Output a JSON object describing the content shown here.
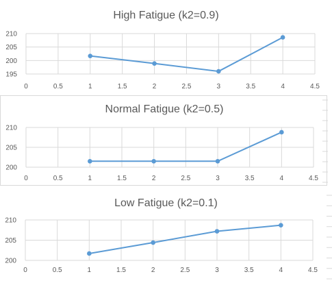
{
  "colors": {
    "series": "#5b9bd5",
    "grid": "#d9d9d9",
    "text": "#595959"
  },
  "chart_data": [
    {
      "type": "line",
      "title": "High Fatigue (k2=0.9)",
      "xlim": [
        0,
        4.5
      ],
      "ylim": [
        195,
        210
      ],
      "x_ticks": [
        "0",
        "0.5",
        "1",
        "1.5",
        "2",
        "2.5",
        "3",
        "3.5",
        "4",
        "4.5"
      ],
      "y_ticks": [
        "195",
        "200",
        "205",
        "210"
      ],
      "grid": true,
      "series": [
        {
          "x": [
            1,
            2,
            3,
            4
          ],
          "y": [
            201.7,
            198.9,
            196.0,
            208.6
          ]
        }
      ]
    },
    {
      "type": "line",
      "title": "Normal Fatigue (k2=0.5)",
      "xlim": [
        0,
        4.5
      ],
      "ylim": [
        200,
        210
      ],
      "x_ticks": [
        "0",
        "0.5",
        "1",
        "1.5",
        "2",
        "2.5",
        "3",
        "3.5",
        "4",
        "4.5"
      ],
      "y_ticks": [
        "200",
        "205",
        "210"
      ],
      "grid": true,
      "series": [
        {
          "x": [
            1,
            2,
            3,
            4
          ],
          "y": [
            201.5,
            201.5,
            201.5,
            208.8
          ]
        }
      ]
    },
    {
      "type": "line",
      "title": "Low Fatigue (k2=0.1)",
      "xlim": [
        0,
        4.5
      ],
      "ylim": [
        200,
        210
      ],
      "x_ticks": [
        "0",
        "0.5",
        "1",
        "1.5",
        "2",
        "2.5",
        "3",
        "3.5",
        "4",
        "4.5"
      ],
      "y_ticks": [
        "200",
        "205",
        "210"
      ],
      "grid": true,
      "series": [
        {
          "x": [
            1,
            2,
            3,
            4
          ],
          "y": [
            201.7,
            204.4,
            207.2,
            208.7
          ]
        }
      ]
    }
  ]
}
